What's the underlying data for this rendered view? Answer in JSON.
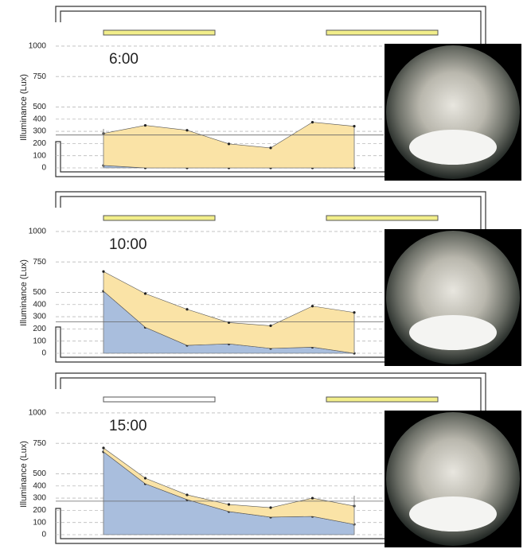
{
  "chart_data": [
    {
      "type": "area",
      "stacked": true,
      "title": "6:00",
      "y_label": "Illuminance (Lux)",
      "categories": [
        null,
        null,
        null,
        null,
        null,
        null,
        null
      ],
      "series": [
        {
          "color": "#a9bedd",
          "values": [
            20,
            0,
            0,
            0,
            0,
            0,
            0
          ]
        },
        {
          "color": "#fae3a6",
          "values": [
            263,
            349,
            309,
            197,
            164,
            375,
            342
          ]
        }
      ],
      "reference_value": 270,
      "ylim": [
        0,
        1300
      ],
      "yticks": [
        0,
        100,
        200,
        300,
        400,
        500,
        750,
        1000
      ],
      "grid": true
    },
    {
      "type": "area",
      "stacked": true,
      "title": "10:00",
      "y_label": "Illuminance (Lux)",
      "categories": [
        null,
        null,
        null,
        null,
        null,
        null,
        null
      ],
      "series": [
        {
          "color": "#a9bedd",
          "values": [
            510,
            213,
            65,
            77,
            40,
            50,
            0
          ]
        },
        {
          "color": "#fae3a6",
          "values": [
            161,
            277,
            296,
            175,
            186,
            337,
            335
          ]
        }
      ],
      "reference_value": 258,
      "ylim": [
        0,
        1300
      ],
      "yticks": [
        0,
        100,
        200,
        300,
        400,
        500,
        750,
        1000
      ],
      "grid": true
    },
    {
      "type": "area",
      "stacked": true,
      "title": "15:00",
      "y_label": "Illuminance (Lux)",
      "categories": [
        null,
        null,
        null,
        null,
        null,
        null,
        null
      ],
      "series": [
        {
          "color": "#a9bedd",
          "values": [
            680,
            418,
            288,
            190,
            144,
            150,
            85
          ]
        },
        {
          "color": "#fae3a6",
          "values": [
            32,
            46,
            39,
            58,
            78,
            150,
            150
          ]
        }
      ],
      "reference_value": 275,
      "ylim": [
        0,
        1300
      ],
      "yticks": [
        0,
        100,
        200,
        300,
        400,
        500,
        750,
        1000
      ],
      "grid": true
    }
  ]
}
